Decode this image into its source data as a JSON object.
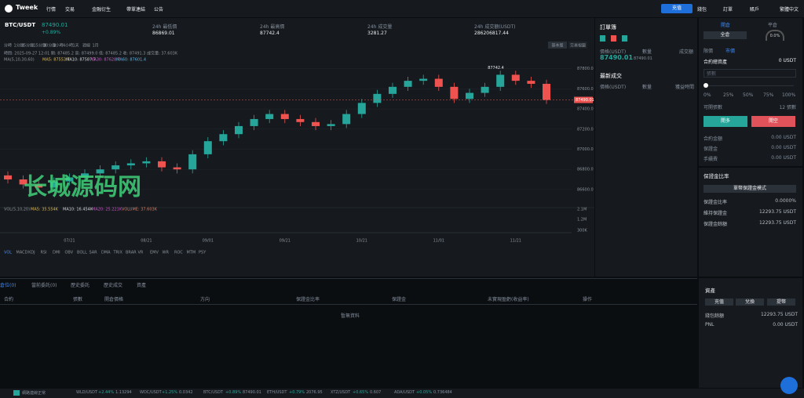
{
  "nav": {
    "logo": "Tweek",
    "menu": [
      "行情",
      "交易",
      "金融衍生",
      "帶單連結",
      "公告"
    ],
    "deposit": "充值",
    "right_menu": [
      "錢包",
      "訂單",
      "賬戶"
    ],
    "language": "繁體中文"
  },
  "ticker": {
    "symbol": "BTC/USDT",
    "price": "87490.01",
    "change": "+0.89%",
    "stats": [
      {
        "label": "24h 最低價",
        "value": "86869.01"
      },
      {
        "label": "24h 最高價",
        "value": "87742.4"
      },
      {
        "label": "24h 成交量",
        "value": "3281.27"
      },
      {
        "label": "24h 成交額(USDT)",
        "value": "286206817.44"
      }
    ]
  },
  "timeframes": [
    "分時",
    "1分鐘",
    "5分鐘",
    "15分鐘",
    "30分鐘",
    "1小時",
    "4小時",
    "1天",
    "週線",
    "1月"
  ],
  "views": [
    "基本版",
    "交易視圖"
  ],
  "info_line": "時間: 2025-09-27 12:01  開: 87485.2  高: 87499.0  低: 87485.2  收: 87491.3  成交量: 37.603K",
  "ma_line": [
    "MA(5,10,30,60)",
    "MA5: 87553.7",
    "MA10: 87587.7",
    "MA30: 87628.7",
    "MA60: 87601.4"
  ],
  "chart_data": {
    "type": "candlestick",
    "categories": [
      null,
      null,
      null,
      null,
      "07/21",
      null,
      null,
      null,
      null,
      "08/21",
      null,
      null,
      null,
      "09/01",
      null,
      null,
      null,
      null,
      "09/21",
      null,
      null,
      null,
      null,
      "10/21",
      null,
      null,
      null,
      null,
      "11/01",
      null,
      null,
      null,
      null,
      "11/21",
      null,
      null
    ],
    "open": [
      86740,
      86700,
      86650,
      86620,
      86680,
      86720,
      86760,
      86800,
      86840,
      86860,
      86880,
      86820,
      86800,
      86950,
      87080,
      87150,
      87230,
      87300,
      87350,
      87300,
      87270,
      87230,
      87250,
      87350,
      87460,
      87550,
      87620,
      87680,
      87700,
      87620,
      87500,
      87560,
      87620,
      87740,
      87680,
      87650
    ],
    "high": [
      86780,
      86740,
      86690,
      86720,
      86760,
      86800,
      86840,
      86880,
      86900,
      86920,
      86920,
      86860,
      86990,
      87120,
      87190,
      87270,
      87340,
      87390,
      87390,
      87340,
      87310,
      87290,
      87390,
      87500,
      87590,
      87660,
      87720,
      87740,
      87740,
      87660,
      87600,
      87660,
      87780,
      87780,
      87720,
      87690
    ],
    "low": [
      86660,
      86610,
      86580,
      86580,
      86640,
      86680,
      86720,
      86760,
      86800,
      86820,
      86780,
      86760,
      86760,
      86910,
      87040,
      87110,
      87190,
      87260,
      87260,
      87230,
      87190,
      87190,
      87210,
      87310,
      87420,
      87510,
      87580,
      87640,
      87580,
      87460,
      87460,
      87520,
      87580,
      87640,
      87610,
      87450
    ],
    "close": [
      86700,
      86650,
      86620,
      86680,
      86720,
      86760,
      86800,
      86840,
      86860,
      86880,
      86820,
      86800,
      86950,
      87080,
      87150,
      87230,
      87300,
      87350,
      87300,
      87270,
      87230,
      87250,
      87350,
      87460,
      87550,
      87620,
      87680,
      87700,
      87620,
      87500,
      87560,
      87620,
      87740,
      87680,
      87650,
      87490
    ],
    "ylim": [
      86420,
      87860
    ],
    "yticks": [
      {
        "value": 86600,
        "label": "86600.0"
      },
      {
        "value": 86800,
        "label": "86800.0"
      },
      {
        "value": 87000,
        "label": "87000.0"
      },
      {
        "value": 87200,
        "label": "87200.0"
      },
      {
        "value": 87400,
        "label": "87400.0"
      },
      {
        "value": 87600,
        "label": "87600.0"
      },
      {
        "value": 87800,
        "label": "87800.0"
      }
    ],
    "up_color": "#26a69a",
    "down_color": "#ef5350",
    "last_price": 87490.01,
    "high_marker": "87742.4"
  },
  "watermark": "长城源码网",
  "volume": {
    "legend": [
      "VOL(5,10,20)",
      "MA5: 35.554K",
      "MA10: 16.454K",
      "MA20: 25.221K",
      "VOLUME: 37.603K"
    ],
    "axis_labels": [
      "2.1M",
      "1.2M",
      "300K"
    ]
  },
  "indicators": [
    "VOL",
    "MACD",
    "KDJ",
    "RSI",
    "DMI",
    "OBV",
    "BOLL",
    "SAR",
    "DMA",
    "TRIX",
    "BRAR",
    "VR",
    "EMV",
    "WR",
    "ROC",
    "MTM",
    "PSY"
  ],
  "order_book": {
    "title": "訂單簿",
    "headers": [
      "價格(USDT)",
      "數量",
      "成交額"
    ],
    "price": "87490.01",
    "price_small": "87490.01",
    "trades_title": "最新成交",
    "trade_headers": [
      "價格(USDT)",
      "數量",
      "獲益時間"
    ]
  },
  "trade_panel": {
    "tabs": [
      "開倉",
      "平倉"
    ],
    "gauge": "0.0%",
    "margin_mode": "全倉",
    "order_types": [
      "限價",
      "市價"
    ],
    "assets_label": "合約總資產",
    "assets_value": "0 USDT",
    "input_placeholder": "張數",
    "slider": [
      "0%",
      "25%",
      "50%",
      "75%",
      "100%"
    ],
    "available_label": "可開張數",
    "available_value": "12 張數",
    "buy": "開多",
    "sell": "開空",
    "rows": [
      {
        "label": "合約金額",
        "value": "0.00 USDT"
      },
      {
        "label": "保證金",
        "value": "0.00 USDT"
      },
      {
        "label": "手續費",
        "value": "0.00 USDT"
      }
    ],
    "ratio_title": "保證金比率",
    "ratio_mode": "單幣保證金模式",
    "ratio_rows": [
      {
        "label": "保證金比率",
        "value": "0.0000%"
      },
      {
        "label": "維持保證金",
        "value": "12293.75 USDT"
      },
      {
        "label": "保證金餘額",
        "value": "12293.75 USDT"
      }
    ]
  },
  "positions": {
    "tabs": [
      "倉位(0)",
      "當前委託(0)",
      "歷史委託",
      "歷史成交",
      "資產"
    ],
    "headers": [
      "合約",
      "張數",
      "開倉價格",
      "方向",
      "保證金比率",
      "保證金",
      "未實現盈虧(收益率)",
      "操作"
    ],
    "empty": "暫無資料"
  },
  "assets": {
    "title": "資產",
    "buttons": [
      "充值",
      "兌換",
      "提幣"
    ],
    "rows": [
      {
        "label": "錢包餘額",
        "value": "12293.75 USDT"
      },
      {
        "label": "PNL",
        "value": "0.00 USDT"
      }
    ]
  },
  "footer": {
    "status": "網路連線正常",
    "tickers": [
      {
        "pair": "WLD/USDT",
        "change": "+2.44%",
        "price": "1.13294"
      },
      {
        "pair": "WDC/USDT",
        "change": "+1.25%",
        "price": "0.0342"
      },
      {
        "pair": "BTC/USDT",
        "change": "+0.89%",
        "price": "87490.01"
      },
      {
        "pair": "ETH/USDT",
        "change": "+0.79%",
        "price": "2076.95"
      },
      {
        "pair": "XTZ/USDT",
        "change": "+0.65%",
        "price": "0.607"
      },
      {
        "pair": "ADA/USDT",
        "change": "+0.05%",
        "price": "0.736484"
      }
    ]
  }
}
